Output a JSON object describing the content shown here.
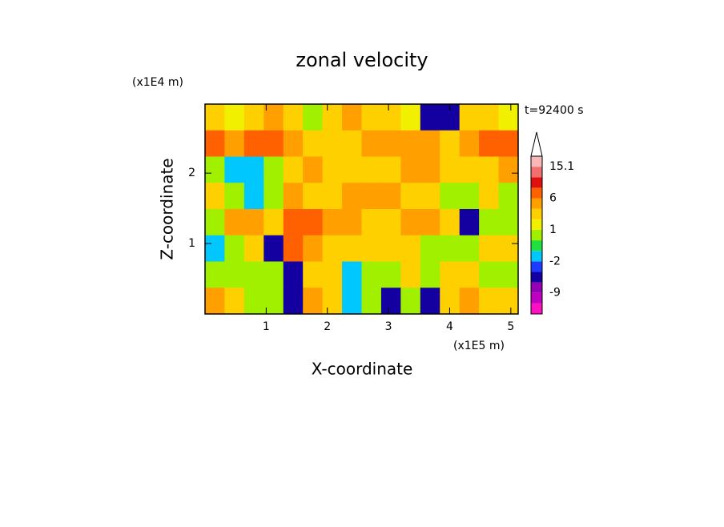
{
  "chart_data": {
    "type": "contour",
    "title": "zonal velocity",
    "time_label": "t=92400 s",
    "xlabel": "X-coordinate",
    "ylabel": "Z-coordinate",
    "x_unit": "(x1E5 m)",
    "y_unit": "(x1E4 m)",
    "xlim": [
      0,
      5.12
    ],
    "ylim": [
      0,
      2.98
    ],
    "xticks": [
      1,
      2,
      3,
      4,
      5
    ],
    "yticks": [
      1,
      2
    ],
    "z": [
      [
        2,
        1,
        2,
        3,
        2,
        0.5,
        2,
        3,
        2,
        2,
        1,
        -5,
        -5,
        2,
        2,
        1
      ],
      [
        6,
        4,
        6,
        6,
        4,
        2,
        2,
        2,
        3,
        4,
        4,
        3,
        2,
        4,
        6,
        6
      ],
      [
        0.5,
        -1.5,
        -1.5,
        0.5,
        2,
        3,
        2,
        2,
        2,
        2,
        3,
        3,
        2,
        2,
        2,
        3
      ],
      [
        2,
        0.5,
        -1.5,
        0.5,
        3,
        2,
        2,
        3,
        4,
        3,
        2,
        2,
        0.5,
        0.5,
        2,
        0.5
      ],
      [
        0.5,
        4,
        4,
        2,
        6,
        6,
        4,
        3,
        2,
        2,
        3,
        3,
        2,
        -5,
        0.5,
        0.5
      ],
      [
        -1.5,
        0.5,
        2,
        -5,
        6,
        3,
        2,
        2,
        2,
        2,
        2,
        0.5,
        0.5,
        0.5,
        2,
        2
      ],
      [
        0.5,
        0.5,
        0.5,
        0.5,
        -5,
        2,
        2,
        -1.5,
        0.5,
        0.5,
        2,
        0.5,
        2,
        2,
        0.5,
        0.5
      ],
      [
        3,
        2,
        0.5,
        0.5,
        -5,
        3,
        2,
        -1.5,
        0.5,
        -5,
        0.5,
        -5,
        2,
        3,
        2,
        2
      ]
    ],
    "levels": [
      -12,
      -9,
      -6,
      -4,
      -2,
      -1,
      0,
      1,
      2,
      3,
      6,
      9,
      12,
      15.1
    ],
    "colors": [
      "#ff10c0",
      "#c000c0",
      "#9600b4",
      "#1400a0",
      "#1e3cff",
      "#00c8ff",
      "#20e040",
      "#a0f000",
      "#f0f000",
      "#ffd000",
      "#ffa000",
      "#ff6000",
      "#e01010",
      "#f07070",
      "#f8b8b8"
    ],
    "colorbar_ticks": [
      -9,
      -2,
      1,
      6,
      15.1
    ]
  }
}
